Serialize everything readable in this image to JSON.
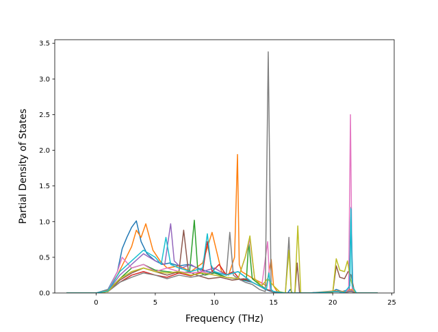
{
  "chart_data": {
    "type": "line",
    "title": "",
    "xlabel": "Frequency (THz)",
    "ylabel": "Partial Density of States",
    "xlim": [
      -3.5,
      25.2
    ],
    "ylim": [
      0,
      3.55
    ],
    "x_ticks": [
      0,
      5,
      10,
      15,
      20,
      25
    ],
    "x_tick_labels": [
      "0",
      "5",
      "10",
      "15",
      "20",
      "25"
    ],
    "y_ticks": [
      0.0,
      0.5,
      1.0,
      1.5,
      2.0,
      2.5,
      3.0,
      3.5
    ],
    "y_tick_labels": [
      "0.0",
      "0.5",
      "1.0",
      "1.5",
      "2.0",
      "2.5",
      "3.0",
      "3.5"
    ],
    "grid": false,
    "legend": "none",
    "series_count": 10,
    "colors": [
      "#1f77b4",
      "#ff7f0e",
      "#2ca02c",
      "#d62728",
      "#9467bd",
      "#8c564b",
      "#e377c2",
      "#7f7f7f",
      "#bcbd22",
      "#17becf"
    ],
    "series": [
      {
        "color": "#1f77b4",
        "x": [
          -2.5,
          0,
          1,
          1.8,
          2.2,
          2.6,
          3.0,
          3.4,
          3.8,
          4.3,
          5.0,
          5.6,
          6.2,
          7.0,
          7.8,
          8.6,
          9.4,
          10.2,
          11.0,
          11.8,
          12.4,
          13.2,
          13.8,
          14.3,
          14.8,
          15.5,
          16.2,
          16.4,
          16.6,
          17.0,
          17.4,
          18,
          19.8,
          20.3,
          20.8,
          21.4,
          21.55,
          21.7,
          22,
          23.8
        ],
        "y": [
          0,
          0,
          0.05,
          0.3,
          0.62,
          0.78,
          0.92,
          1.01,
          0.72,
          0.55,
          0.45,
          0.4,
          0.42,
          0.38,
          0.4,
          0.35,
          0.3,
          0.28,
          0.22,
          0.2,
          0.18,
          0.15,
          0.1,
          0.05,
          0.02,
          0,
          0,
          0.05,
          0,
          0,
          0,
          0,
          0,
          0.05,
          0.02,
          0.05,
          1.2,
          0.05,
          0,
          0
        ]
      },
      {
        "color": "#ff7f0e",
        "x": [
          -2.5,
          0,
          1,
          1.8,
          2.4,
          3.0,
          3.4,
          3.8,
          4.2,
          4.8,
          5.4,
          6.0,
          7.0,
          8.0,
          9.0,
          9.8,
          10.6,
          11.2,
          11.7,
          11.95,
          12.1,
          12.3,
          12.8,
          13.3,
          13.9,
          14.4,
          14.8,
          15.0,
          15.3,
          16.0,
          16.4,
          17.0,
          18,
          20.2,
          21.0,
          21.55,
          22,
          23.8
        ],
        "y": [
          0,
          0,
          0.04,
          0.25,
          0.45,
          0.65,
          0.88,
          0.78,
          0.97,
          0.6,
          0.45,
          0.35,
          0.38,
          0.3,
          0.42,
          0.85,
          0.3,
          0.25,
          0.5,
          1.94,
          0.4,
          0.3,
          0.25,
          0.2,
          0.15,
          0.1,
          0.47,
          0.1,
          0.02,
          0,
          0,
          0,
          0,
          0.03,
          0.02,
          0.05,
          0,
          0
        ]
      },
      {
        "color": "#2ca02c",
        "x": [
          -2.5,
          0,
          1,
          2.0,
          3.0,
          4.0,
          5.0,
          6.0,
          7.0,
          7.9,
          8.3,
          8.6,
          9.2,
          10.0,
          11.0,
          12.0,
          12.7,
          12.9,
          13.2,
          13.8,
          14.4,
          15.0,
          16.0,
          17.0,
          18.0,
          20.3,
          21.0,
          21.55,
          22,
          23.8
        ],
        "y": [
          0,
          0,
          0.03,
          0.2,
          0.35,
          0.4,
          0.32,
          0.3,
          0.28,
          0.3,
          1.02,
          0.3,
          0.25,
          0.28,
          0.22,
          0.2,
          0.18,
          0.72,
          0.2,
          0.12,
          0.05,
          0.02,
          0,
          0,
          0,
          0.02,
          0.01,
          0.03,
          0,
          0
        ]
      },
      {
        "color": "#d62728",
        "x": [
          -2.5,
          0,
          1,
          2.0,
          3.0,
          4.0,
          5.0,
          6.0,
          7.0,
          8.0,
          9.0,
          9.4,
          9.8,
          10.4,
          11.0,
          11.6,
          12.2,
          12.7,
          13.2,
          13.8,
          14.4,
          15.0,
          16.0,
          17.0,
          18.0,
          20.3,
          21.0,
          21.55,
          22,
          23.8
        ],
        "y": [
          0,
          0,
          0.02,
          0.15,
          0.25,
          0.3,
          0.25,
          0.22,
          0.28,
          0.24,
          0.3,
          0.72,
          0.3,
          0.4,
          0.25,
          0.3,
          0.18,
          0.2,
          0.15,
          0.1,
          0.05,
          0.02,
          0,
          0,
          0,
          0.02,
          0.01,
          0.02,
          0,
          0
        ]
      },
      {
        "color": "#9467bd",
        "x": [
          -2.5,
          0,
          1,
          2.0,
          3.0,
          4.0,
          5.0,
          5.8,
          6.3,
          6.6,
          7.2,
          8.0,
          9.0,
          10.0,
          11.0,
          12.0,
          12.8,
          13.2,
          13.8,
          14.4,
          15.0,
          16.0,
          17.0,
          18.0,
          20.3,
          21.0,
          21.55,
          22,
          23.8
        ],
        "y": [
          0,
          0,
          0.03,
          0.25,
          0.4,
          0.55,
          0.45,
          0.4,
          0.97,
          0.45,
          0.35,
          0.4,
          0.3,
          0.35,
          0.25,
          0.3,
          0.2,
          0.15,
          0.1,
          0.05,
          0.02,
          0,
          0,
          0,
          0.02,
          0.01,
          0.03,
          0,
          0
        ]
      },
      {
        "color": "#8c564b",
        "x": [
          -2.5,
          0,
          1,
          2.0,
          3.0,
          4.0,
          5.0,
          6.0,
          7.0,
          7.4,
          7.8,
          8.5,
          9.5,
          10.5,
          11.5,
          12.5,
          13.2,
          13.8,
          14.4,
          15.0,
          16.0,
          16.8,
          17.0,
          17.2,
          18.0,
          20.0,
          20.3,
          20.6,
          21.0,
          21.3,
          21.55,
          21.8,
          22,
          23.8
        ],
        "y": [
          0,
          0,
          0.02,
          0.18,
          0.28,
          0.35,
          0.3,
          0.25,
          0.3,
          0.88,
          0.3,
          0.25,
          0.2,
          0.22,
          0.18,
          0.2,
          0.15,
          0.1,
          0.05,
          0.02,
          0,
          0,
          0.42,
          0,
          0,
          0,
          0.38,
          0.22,
          0.2,
          0.3,
          0.25,
          0.05,
          0,
          0
        ]
      },
      {
        "color": "#e377c2",
        "x": [
          -2.5,
          0,
          1,
          1.8,
          2.2,
          3.0,
          4.0,
          5.0,
          6.0,
          7.0,
          8.0,
          9.0,
          10.0,
          11.0,
          12.0,
          12.6,
          13.0,
          13.4,
          14.0,
          14.5,
          14.7,
          15.0,
          16.0,
          17.0,
          18.0,
          20.3,
          21.0,
          21.35,
          21.5,
          21.65,
          22,
          23.8
        ],
        "y": [
          0,
          0,
          0.03,
          0.3,
          0.5,
          0.35,
          0.4,
          0.3,
          0.35,
          0.3,
          0.28,
          0.3,
          0.25,
          0.22,
          0.2,
          0.5,
          0.75,
          0.2,
          0.1,
          0.72,
          0.05,
          0.02,
          0,
          0,
          0,
          0.02,
          0.01,
          0.05,
          2.5,
          0.05,
          0,
          0
        ]
      },
      {
        "color": "#7f7f7f",
        "x": [
          -2.5,
          0,
          1,
          2.0,
          3.0,
          4.0,
          5.0,
          6.0,
          7.0,
          8.0,
          9.0,
          10.0,
          11.0,
          11.3,
          11.6,
          12.0,
          12.6,
          13.2,
          13.8,
          14.3,
          14.55,
          14.8,
          15.2,
          16.0,
          16.3,
          16.5,
          16.8,
          17.0,
          18.0,
          20.3,
          21.0,
          21.55,
          22,
          23.8
        ],
        "y": [
          0,
          0,
          0.02,
          0.15,
          0.22,
          0.28,
          0.25,
          0.2,
          0.25,
          0.22,
          0.25,
          0.3,
          0.25,
          0.85,
          0.25,
          0.2,
          0.15,
          0.12,
          0.05,
          0.02,
          3.38,
          0.02,
          0,
          0,
          0.78,
          0,
          0,
          0,
          0,
          0.02,
          0.01,
          0.02,
          0,
          0
        ]
      },
      {
        "color": "#bcbd22",
        "x": [
          -2.5,
          0,
          1,
          2.0,
          3.0,
          4.0,
          5.0,
          6.0,
          7.0,
          8.0,
          9.0,
          10.0,
          11.0,
          12.0,
          12.6,
          13.0,
          13.4,
          14.0,
          14.5,
          15.0,
          15.5,
          16.0,
          16.3,
          16.5,
          16.8,
          17.05,
          17.3,
          18.0,
          20.0,
          20.3,
          20.6,
          21.0,
          21.25,
          21.5,
          21.8,
          22,
          23.8
        ],
        "y": [
          0,
          0,
          0.02,
          0.2,
          0.3,
          0.35,
          0.3,
          0.28,
          0.3,
          0.25,
          0.28,
          0.25,
          0.22,
          0.2,
          0.5,
          0.8,
          0.2,
          0.1,
          0.2,
          0.1,
          0.02,
          0,
          0.6,
          0,
          0,
          0.94,
          0,
          0,
          0,
          0.48,
          0.32,
          0.3,
          0.45,
          0.2,
          0.03,
          0,
          0
        ]
      },
      {
        "color": "#17becf",
        "x": [
          -2.5,
          0,
          1,
          2.0,
          3.0,
          4.0,
          5.0,
          5.5,
          5.9,
          6.3,
          7.0,
          8.0,
          9.0,
          9.4,
          9.7,
          10.0,
          11.0,
          12.0,
          12.8,
          13.2,
          13.8,
          14.4,
          14.6,
          14.8,
          15.0,
          16.0,
          17.0,
          18.0,
          20.3,
          21.0,
          21.45,
          21.55,
          21.65,
          22,
          23.8
        ],
        "y": [
          0,
          0,
          0.03,
          0.3,
          0.45,
          0.6,
          0.5,
          0.4,
          0.78,
          0.4,
          0.35,
          0.3,
          0.35,
          0.83,
          0.4,
          0.3,
          0.25,
          0.3,
          0.2,
          0.15,
          0.1,
          0.05,
          0.28,
          0.05,
          0.02,
          0,
          0,
          0,
          0.02,
          0.01,
          0.1,
          1.18,
          0.1,
          0,
          0
        ]
      }
    ]
  }
}
